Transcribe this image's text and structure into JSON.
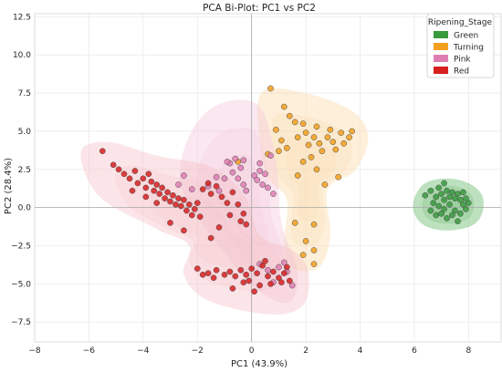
{
  "chart_data": {
    "type": "scatter",
    "title": "PCA Bi-Plot: PC1 vs PC2",
    "xlabel": "PC1 (43.9%)",
    "ylabel": "PC2 (28.4%)",
    "xlim": [
      -8,
      9.2
    ],
    "ylim": [
      -8.8,
      12.7
    ],
    "xticks": [
      -8,
      -6,
      -4,
      -2,
      0,
      2,
      4,
      6,
      8
    ],
    "yticks": [
      -7.5,
      -5.0,
      -2.5,
      0.0,
      2.5,
      5.0,
      7.5,
      10.0,
      12.5
    ],
    "grid": true,
    "reference_lines": {
      "x": 0,
      "y": 0
    },
    "legend": {
      "title": "Ripening_Stage",
      "position": "top-right"
    },
    "series": [
      {
        "name": "Green",
        "color": "#3a9a3e",
        "region_color": "#62b866",
        "region": [
          [
            6.0,
            0.6
          ],
          [
            6.4,
            1.6
          ],
          [
            7.2,
            1.9
          ],
          [
            8.0,
            1.6
          ],
          [
            8.5,
            0.8
          ],
          [
            8.5,
            -0.4
          ],
          [
            8.1,
            -1.2
          ],
          [
            7.2,
            -1.5
          ],
          [
            6.4,
            -1.2
          ],
          [
            6.0,
            -0.4
          ]
        ],
        "points": [
          [
            6.4,
            0.8
          ],
          [
            6.6,
            1.1
          ],
          [
            6.8,
            0.7
          ],
          [
            6.9,
            1.3
          ],
          [
            7.0,
            0.9
          ],
          [
            7.1,
            0.5
          ],
          [
            7.2,
            1.1
          ],
          [
            7.3,
            0.7
          ],
          [
            7.4,
            1.0
          ],
          [
            7.5,
            0.6
          ],
          [
            7.6,
            0.9
          ],
          [
            7.7,
            0.5
          ],
          [
            7.8,
            0.2
          ],
          [
            7.9,
            0.6
          ],
          [
            6.7,
            0.3
          ],
          [
            6.9,
            0.1
          ],
          [
            7.1,
            -0.1
          ],
          [
            7.3,
            0.2
          ],
          [
            7.5,
            -0.2
          ],
          [
            7.7,
            -0.4
          ],
          [
            7.9,
            -0.1
          ],
          [
            8.0,
            0.3
          ],
          [
            6.6,
            -0.2
          ],
          [
            6.8,
            -0.5
          ],
          [
            7.0,
            -0.4
          ],
          [
            7.2,
            -0.7
          ],
          [
            7.4,
            -0.5
          ],
          [
            7.6,
            -0.9
          ],
          [
            7.1,
            1.6
          ],
          [
            7.8,
            1.0
          ]
        ]
      },
      {
        "name": "Turning",
        "color": "#f29f1f",
        "region_color": "#fbd9a8",
        "region": [
          [
            0.4,
            7.6
          ],
          [
            2.2,
            7.4
          ],
          [
            3.8,
            6.2
          ],
          [
            4.3,
            4.5
          ],
          [
            3.8,
            2.4
          ],
          [
            2.8,
            1.2
          ],
          [
            2.9,
            -1.8
          ],
          [
            2.5,
            -3.9
          ],
          [
            1.5,
            -4.0
          ],
          [
            1.2,
            -2.5
          ],
          [
            1.3,
            0.5
          ],
          [
            0.6,
            2.0
          ],
          [
            0.3,
            4.5
          ]
        ],
        "points": [
          [
            0.7,
            7.8
          ],
          [
            1.2,
            6.6
          ],
          [
            1.6,
            5.6
          ],
          [
            1.4,
            6.0
          ],
          [
            0.9,
            5.1
          ],
          [
            1.1,
            4.4
          ],
          [
            1.3,
            3.9
          ],
          [
            0.6,
            3.5
          ],
          [
            1.0,
            3.7
          ],
          [
            1.7,
            4.6
          ],
          [
            1.9,
            5.5
          ],
          [
            2.0,
            4.9
          ],
          [
            2.1,
            4.1
          ],
          [
            2.2,
            3.3
          ],
          [
            2.3,
            4.6
          ],
          [
            2.4,
            5.3
          ],
          [
            2.5,
            4.2
          ],
          [
            2.6,
            3.7
          ],
          [
            2.8,
            4.6
          ],
          [
            2.9,
            5.1
          ],
          [
            3.0,
            4.3
          ],
          [
            3.1,
            3.8
          ],
          [
            3.3,
            4.9
          ],
          [
            3.4,
            4.2
          ],
          [
            3.6,
            4.6
          ],
          [
            3.7,
            5.0
          ],
          [
            2.4,
            2.5
          ],
          [
            1.9,
            3.0
          ],
          [
            3.2,
            2.0
          ],
          [
            2.7,
            1.5
          ],
          [
            1.7,
            2.1
          ],
          [
            -0.5,
            3.0
          ],
          [
            1.6,
            -1.0
          ],
          [
            2.3,
            -1.1
          ],
          [
            2.0,
            -2.2
          ],
          [
            2.3,
            -2.8
          ],
          [
            1.9,
            -3.1
          ],
          [
            2.3,
            -3.7
          ]
        ]
      },
      {
        "name": "Pink",
        "color": "#e07eb4",
        "region_color": "#f4c6da",
        "region": [
          [
            -2.0,
            5.6
          ],
          [
            -1.0,
            6.9
          ],
          [
            0.3,
            6.6
          ],
          [
            0.9,
            3.0
          ],
          [
            1.1,
            -1.0
          ],
          [
            1.7,
            -4.2
          ],
          [
            1.4,
            -6.2
          ],
          [
            0.3,
            -5.5
          ],
          [
            -0.9,
            -3.2
          ],
          [
            -2.4,
            0.5
          ],
          [
            -2.6,
            3.0
          ]
        ],
        "points": [
          [
            -2.5,
            2.1
          ],
          [
            -2.7,
            1.5
          ],
          [
            -2.2,
            1.2
          ],
          [
            -1.6,
            1.4
          ],
          [
            -1.3,
            2.0
          ],
          [
            -1.2,
            1.1
          ],
          [
            -1.0,
            1.9
          ],
          [
            -0.8,
            2.9
          ],
          [
            -0.6,
            3.2
          ],
          [
            -0.5,
            1.9
          ],
          [
            -0.4,
            2.6
          ],
          [
            -0.3,
            1.5
          ],
          [
            -0.2,
            1.1
          ],
          [
            0.1,
            2.1
          ],
          [
            0.2,
            1.8
          ],
          [
            0.3,
            2.4
          ],
          [
            0.4,
            1.5
          ],
          [
            0.5,
            2.2
          ],
          [
            0.6,
            1.3
          ],
          [
            0.8,
            0.9
          ],
          [
            -0.3,
            3.1
          ],
          [
            0.3,
            2.9
          ],
          [
            0.7,
            3.4
          ],
          [
            -0.7,
            2.3
          ],
          [
            -0.9,
            3.0
          ],
          [
            0.3,
            -3.7
          ],
          [
            0.6,
            -4.1
          ],
          [
            1.0,
            -3.9
          ],
          [
            1.3,
            -4.2
          ],
          [
            1.5,
            -5.1
          ],
          [
            0.8,
            -4.9
          ],
          [
            1.2,
            -3.6
          ]
        ]
      },
      {
        "name": "Red",
        "color": "#d62020",
        "region_color": "#f5c2c8",
        "region": [
          [
            -6.3,
            3.6
          ],
          [
            -5.3,
            4.3
          ],
          [
            -3.5,
            3.4
          ],
          [
            -1.4,
            2.6
          ],
          [
            -0.2,
            0.6
          ],
          [
            0.3,
            -1.8
          ],
          [
            1.6,
            -2.9
          ],
          [
            2.1,
            -4.3
          ],
          [
            1.9,
            -6.4
          ],
          [
            0.7,
            -7.0
          ],
          [
            -1.6,
            -6.1
          ],
          [
            -2.5,
            -4.4
          ],
          [
            -2.3,
            -2.5
          ],
          [
            -3.5,
            -1.4
          ],
          [
            -5.6,
            0.7
          ]
        ],
        "points": [
          [
            -5.5,
            3.7
          ],
          [
            -5.1,
            2.8
          ],
          [
            -4.9,
            2.5
          ],
          [
            -4.7,
            2.2
          ],
          [
            -4.5,
            1.9
          ],
          [
            -4.3,
            2.4
          ],
          [
            -4.2,
            1.6
          ],
          [
            -4.0,
            1.9
          ],
          [
            -3.9,
            1.3
          ],
          [
            -3.8,
            2.2
          ],
          [
            -3.7,
            1.7
          ],
          [
            -3.6,
            1.1
          ],
          [
            -3.5,
            1.5
          ],
          [
            -3.4,
            0.9
          ],
          [
            -3.3,
            1.3
          ],
          [
            -3.2,
            0.6
          ],
          [
            -3.1,
            1.0
          ],
          [
            -3.0,
            0.4
          ],
          [
            -2.9,
            0.8
          ],
          [
            -2.8,
            0.2
          ],
          [
            -2.7,
            0.6
          ],
          [
            -2.6,
            0.1
          ],
          [
            -2.5,
            0.5
          ],
          [
            -2.4,
            -0.2
          ],
          [
            -2.3,
            0.2
          ],
          [
            -2.2,
            -0.5
          ],
          [
            -2.1,
            -0.1
          ],
          [
            -2.0,
            0.3
          ],
          [
            -1.9,
            -0.6
          ],
          [
            -1.8,
            1.2
          ],
          [
            -1.6,
            1.6
          ],
          [
            -1.5,
            0.9
          ],
          [
            -1.3,
            1.4
          ],
          [
            -1.1,
            0.7
          ],
          [
            -0.9,
            0.3
          ],
          [
            -0.7,
            1.0
          ],
          [
            -0.5,
            0.2
          ],
          [
            -0.3,
            -0.4
          ],
          [
            -0.2,
            -1.1
          ],
          [
            -0.4,
            -0.9
          ],
          [
            -0.8,
            -0.5
          ],
          [
            -1.2,
            -1.3
          ],
          [
            -1.5,
            -2.0
          ],
          [
            -2.5,
            -1.5
          ],
          [
            -3.0,
            -1.0
          ],
          [
            -3.5,
            0.3
          ],
          [
            -3.9,
            0.7
          ],
          [
            -4.4,
            1.1
          ],
          [
            -2.0,
            -4.0
          ],
          [
            -1.6,
            -4.3
          ],
          [
            -1.3,
            -4.1
          ],
          [
            -1.0,
            -4.4
          ],
          [
            -0.8,
            -4.2
          ],
          [
            -0.6,
            -4.5
          ],
          [
            -0.4,
            -4.1
          ],
          [
            -0.2,
            -4.4
          ],
          [
            0.0,
            -4.0
          ],
          [
            0.2,
            -4.3
          ],
          [
            0.4,
            -3.8
          ],
          [
            0.6,
            -4.5
          ],
          [
            0.8,
            -4.2
          ],
          [
            1.0,
            -4.6
          ],
          [
            1.2,
            -4.3
          ],
          [
            1.4,
            -4.8
          ],
          [
            -0.1,
            -4.8
          ],
          [
            0.3,
            -5.1
          ],
          [
            0.7,
            -5.0
          ],
          [
            1.1,
            -4.9
          ],
          [
            -0.7,
            -5.3
          ],
          [
            0.1,
            -5.5
          ],
          [
            -0.3,
            -4.9
          ],
          [
            -1.8,
            -4.4
          ],
          [
            0.5,
            -3.5
          ],
          [
            1.3,
            -3.9
          ],
          [
            -1.4,
            -4.6
          ]
        ]
      }
    ]
  }
}
